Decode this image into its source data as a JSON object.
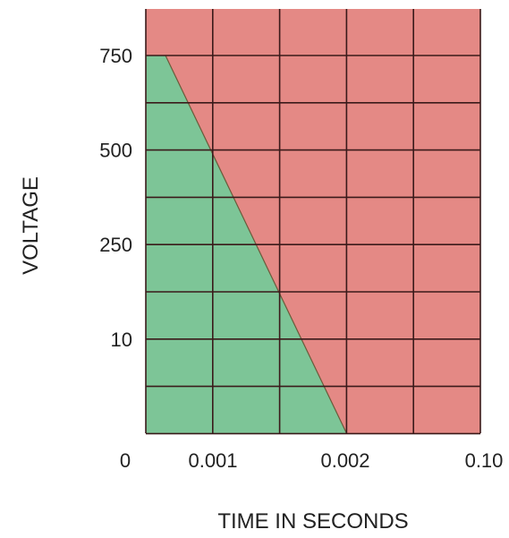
{
  "chart_data": {
    "type": "area",
    "title": "",
    "xlabel": "TIME IN SECONDS",
    "ylabel": "VOLTAGE",
    "x_tick_labels": [
      "0",
      "0.001",
      "0.002",
      "0.10"
    ],
    "y_tick_labels": [
      "750",
      "500",
      "250",
      "10"
    ],
    "grid": true,
    "regions": [
      {
        "name": "",
        "color": "#7dc597",
        "boundary": [
          {
            "x": "0",
            "y": "750"
          },
          {
            "x": "0.0003",
            "y": "750"
          },
          {
            "x": "0.002",
            "y": "0"
          }
        ]
      },
      {
        "name": "",
        "color": "#e48985"
      }
    ],
    "grid_color": "#3a1a1a"
  }
}
